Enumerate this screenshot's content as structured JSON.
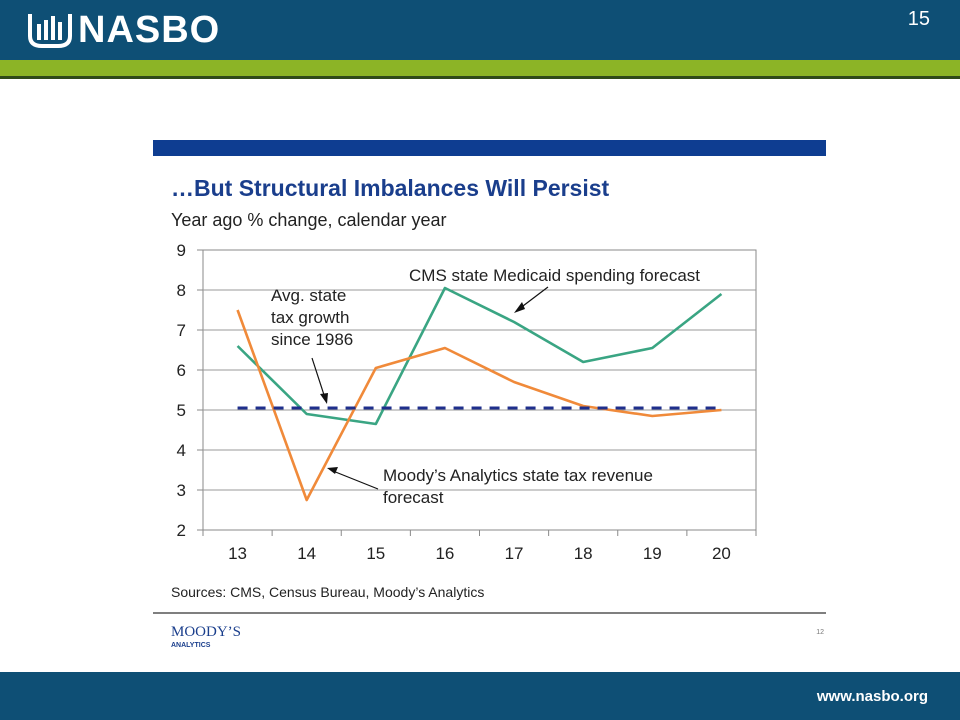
{
  "header": {
    "logo_text": "NASBO",
    "page_number": "15"
  },
  "footer": {
    "url": "www.nasbo.org"
  },
  "colors": {
    "header_blue": "#0e4f75",
    "header_green": "#8cb426",
    "chart_blue_bar": "#0e3d91",
    "title_blue": "#1a3e8c",
    "tax_orange": "#f08a3a",
    "medicaid_green": "#3aa583",
    "avg_dash_blue": "#1f2f8c"
  },
  "slide": {
    "title": "…But Structural Imbalances Will Persist",
    "subtitle": "Year ago % change, calendar year",
    "sources": "Sources: CMS,  Census Bureau, Moody’s Analytics",
    "moodys_brand": "MOODY’S",
    "moodys_sub": "ANALYTICS",
    "slide_number": "12"
  },
  "chart_data": {
    "type": "line",
    "x": [
      "13",
      "14",
      "15",
      "16",
      "17",
      "18",
      "19",
      "20"
    ],
    "ylim": [
      2,
      9
    ],
    "yticks": [
      "2",
      "3",
      "4",
      "5",
      "6",
      "7",
      "8",
      "9"
    ],
    "grid": true,
    "series": [
      {
        "name": "CMS state Medicaid spending forecast",
        "values": [
          6.6,
          4.9,
          4.65,
          8.05,
          7.2,
          6.2,
          6.55,
          7.9
        ]
      },
      {
        "name": "Moody’s Analytics state tax revenue forecast",
        "values": [
          7.5,
          2.75,
          6.05,
          6.55,
          5.7,
          5.1,
          4.85,
          5.0
        ]
      },
      {
        "name": "Avg. state tax growth since 1986",
        "values": [
          5.05,
          5.05,
          5.05,
          5.05,
          5.05,
          5.05,
          5.05,
          5.05
        ]
      }
    ],
    "annotations": [
      {
        "lines": [
          "CMS state Medicaid spending forecast"
        ]
      },
      {
        "lines": [
          "Avg. state",
          "tax growth",
          "since 1986"
        ]
      },
      {
        "lines": [
          "Moody’s Analytics state tax revenue",
          "forecast"
        ]
      }
    ]
  }
}
